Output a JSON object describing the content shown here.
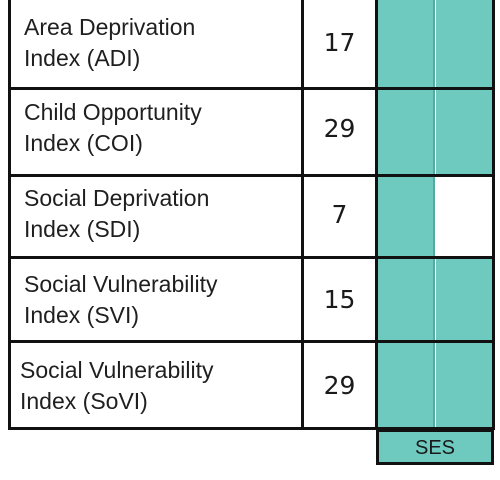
{
  "table": {
    "rows": [
      {
        "name_line1": "Area Deprivation",
        "name_line2": "Index (ADI)",
        "count": "17",
        "cells": [
          "filled",
          "filled"
        ]
      },
      {
        "name_line1": "Child Opportunity",
        "name_line2": "Index (COI)",
        "count": "29",
        "cells": [
          "filled",
          "filled"
        ]
      },
      {
        "name_line1": "Social Deprivation",
        "name_line2": "Index (SDI)",
        "count": "7",
        "cells": [
          "filled",
          "empty"
        ]
      },
      {
        "name_line1": "Social Vulnerability",
        "name_line2": "Index (SVI)",
        "count": "15",
        "cells": [
          "filled",
          "filled"
        ]
      },
      {
        "name_line1": "Social Vulnerability",
        "name_line2": "Index (SoVI)",
        "count": "29",
        "cells": [
          "filled",
          "filled"
        ]
      }
    ],
    "column_label": "SES"
  },
  "colors": {
    "fill": "#6ec9bf",
    "border": "#111111"
  }
}
